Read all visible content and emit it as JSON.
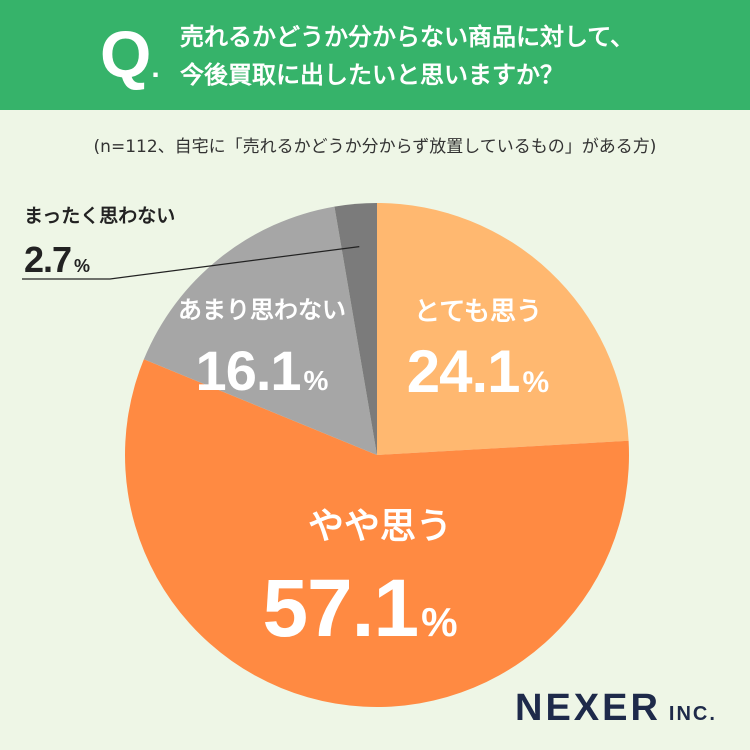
{
  "header": {
    "q_letter": "Q",
    "q_dot": ".",
    "question_line1": "売れるかどうか分からない商品に対して、",
    "question_line2": "今後買取に出したいと思いますか？"
  },
  "note": "(n=112、自宅に「売れるかどうか分からず放置しているもの」がある方)",
  "chart_data": {
    "type": "pie",
    "title": "",
    "slices": [
      {
        "label": "とても思う",
        "value": 24.1,
        "display": "24.1",
        "color": "#ffb870"
      },
      {
        "label": "やや思う",
        "value": 57.1,
        "display": "57.1",
        "color": "#ff8a42"
      },
      {
        "label": "あまり思わない",
        "value": 16.1,
        "display": "16.1",
        "color": "#a6a6a6"
      },
      {
        "label": "まったく思わない",
        "value": 2.7,
        "display": "2.7",
        "color": "#7b7b7b"
      }
    ],
    "unit": "%",
    "start": "12 o'clock",
    "direction": "clockwise"
  },
  "logo": {
    "name": "NEXER",
    "suffix": "INC."
  }
}
